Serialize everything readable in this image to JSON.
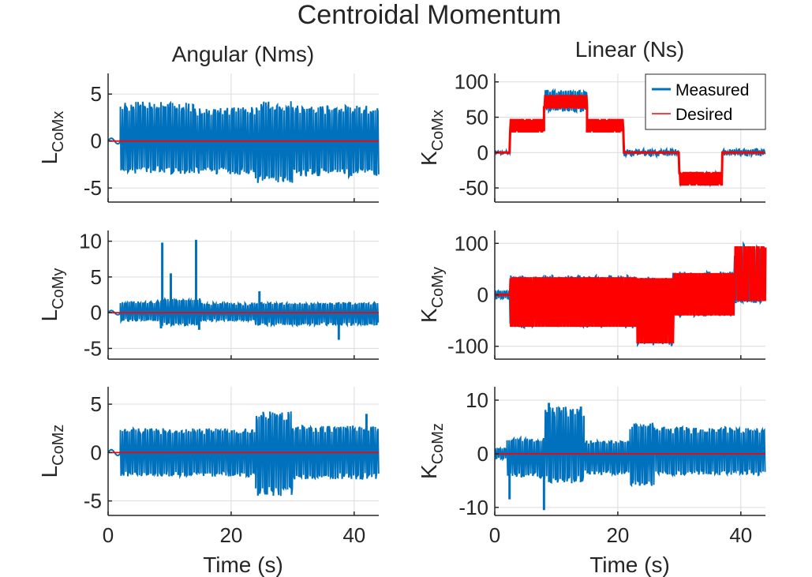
{
  "chart_data": {
    "type": "line",
    "title": "Centroidal Momentum",
    "column_titles": [
      "Angular (Nms)",
      "Linear (Ns)"
    ],
    "xlabel": "Time (s)",
    "xlim": [
      0,
      44
    ],
    "xticks": [
      0,
      20,
      40
    ],
    "colors": {
      "Measured": "#0072bd",
      "Desired": "#ff0000"
    },
    "legend": {
      "placement": "top-right",
      "entries": [
        "Measured",
        "Desired"
      ]
    },
    "grid": true,
    "panels": [
      {
        "id": "LCoMx",
        "ylabel_main": "L",
        "ylabel_sub": "CoMx",
        "ylim": [
          -6.5,
          7.2
        ],
        "yticks": [
          -5,
          0,
          5
        ],
        "yticklabels": [
          "-5",
          "0",
          "5"
        ],
        "measured_segments": [
          [
            0,
            2,
            0,
            0
          ],
          [
            2,
            14,
            4.2,
            -3.5
          ],
          [
            14,
            24,
            3.6,
            -3.6
          ],
          [
            24,
            30,
            4.3,
            -4.5
          ],
          [
            30,
            44,
            3.8,
            -3.8
          ]
        ],
        "desired_levels": [
          [
            0,
            44,
            0
          ]
        ]
      },
      {
        "id": "KCoMx",
        "ylabel_main": "K",
        "ylabel_sub": "CoMx",
        "ylim": [
          -70,
          112
        ],
        "yticks": [
          -50,
          0,
          50,
          100
        ],
        "yticklabels": [
          "-50",
          "0",
          "50",
          "100"
        ],
        "measured_segments": [
          [
            0,
            2.5,
            3,
            -3
          ],
          [
            2.5,
            8,
            45,
            32
          ],
          [
            8,
            15,
            88,
            58
          ],
          [
            15,
            21,
            45,
            32
          ],
          [
            21,
            30,
            5,
            -5
          ],
          [
            30,
            37,
            -28,
            -46
          ],
          [
            37,
            44,
            5,
            -5
          ]
        ],
        "desired_levels": [
          [
            0,
            2.5,
            0
          ],
          [
            2.5,
            8,
            38
          ],
          [
            8,
            15,
            72
          ],
          [
            15,
            21,
            38
          ],
          [
            21,
            30,
            0
          ],
          [
            30,
            37,
            -37
          ],
          [
            37,
            44,
            0
          ]
        ]
      },
      {
        "id": "LCoMy",
        "ylabel_main": "L",
        "ylabel_sub": "CoMy",
        "ylim": [
          -6.5,
          11.5
        ],
        "yticks": [
          -5,
          0,
          5,
          10
        ],
        "yticklabels": [
          "-5",
          "0",
          "5",
          "10"
        ],
        "measured_segments": [
          [
            0,
            2,
            0,
            0
          ],
          [
            2,
            8.5,
            1.6,
            -1.2
          ],
          [
            8.5,
            15,
            2.0,
            -1.8
          ],
          [
            15,
            24,
            1.4,
            -1.2
          ],
          [
            24,
            44,
            1.4,
            -1.8
          ]
        ],
        "spikes": [
          [
            8.8,
            9.8
          ],
          [
            14.3,
            10.2
          ],
          [
            10.2,
            5.5
          ],
          [
            8.6,
            -2.2
          ],
          [
            14.8,
            -2.4
          ],
          [
            24.6,
            3.0
          ],
          [
            37.5,
            -3.8
          ]
        ],
        "desired_levels": [
          [
            0,
            44,
            0
          ]
        ]
      },
      {
        "id": "KCoMy",
        "ylabel_main": "K",
        "ylabel_sub": "CoMy",
        "ylim": [
          -125,
          125
        ],
        "yticks": [
          -100,
          0,
          100
        ],
        "yticklabels": [
          "-100",
          "0",
          "100"
        ],
        "measured_segments": [
          [
            0,
            2.5,
            8,
            -8
          ],
          [
            2.5,
            23,
            38,
            -65
          ],
          [
            23,
            29,
            35,
            -100
          ],
          [
            29,
            39,
            45,
            -42
          ],
          [
            39,
            44,
            100,
            -15
          ]
        ],
        "desired_levels": [
          [
            0,
            44,
            0
          ]
        ]
      },
      {
        "id": "LCoMz",
        "ylabel_main": "L",
        "ylabel_sub": "CoMz",
        "ylim": [
          -6.5,
          6.8
        ],
        "yticks": [
          -5,
          0,
          5
        ],
        "yticklabels": [
          "-5",
          "0",
          "5"
        ],
        "measured_segments": [
          [
            0,
            2,
            0,
            0
          ],
          [
            2,
            24,
            2.5,
            -2.5
          ],
          [
            24,
            30,
            4.3,
            -4.5
          ],
          [
            30,
            44,
            2.8,
            -2.8
          ]
        ],
        "spikes": [
          [
            42,
            4.0
          ]
        ],
        "desired_levels": [
          [
            0,
            44,
            0
          ]
        ]
      },
      {
        "id": "KCoMz",
        "ylabel_main": "K",
        "ylabel_sub": "CoMz",
        "ylim": [
          -11.5,
          12.5
        ],
        "yticks": [
          -10,
          0,
          10
        ],
        "yticklabels": [
          "-10",
          "0",
          "10"
        ],
        "measured_segments": [
          [
            0,
            2,
            1,
            -1
          ],
          [
            2,
            8,
            3,
            -4.5
          ],
          [
            8,
            14.5,
            9,
            -5.5
          ],
          [
            14.5,
            22,
            2.5,
            -4
          ],
          [
            22,
            26,
            6,
            -6
          ],
          [
            26,
            44,
            5,
            -4
          ]
        ],
        "spikes": [
          [
            2.4,
            -8.5
          ],
          [
            8.0,
            -10.5
          ],
          [
            8.8,
            9.5
          ],
          [
            14.0,
            8.8
          ]
        ],
        "desired_levels": [
          [
            0,
            44,
            0
          ]
        ]
      }
    ]
  }
}
